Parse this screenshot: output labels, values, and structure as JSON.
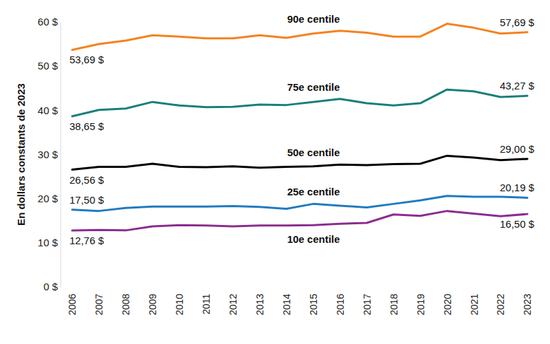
{
  "chart_data": {
    "type": "line",
    "y_label": "En dollars constants de 2023",
    "categories": [
      "2006",
      "2007",
      "2008",
      "2009",
      "2010",
      "2011",
      "2012",
      "2013",
      "2014",
      "2015",
      "2016",
      "2017",
      "2018",
      "2019",
      "2020",
      "2021",
      "2022",
      "2023"
    ],
    "ylim": [
      0,
      60
    ],
    "yticks": [
      {
        "value": 0,
        "label": "0 $"
      },
      {
        "value": 10,
        "label": "10 $"
      },
      {
        "value": 20,
        "label": "20 $"
      },
      {
        "value": 30,
        "label": "30 $"
      },
      {
        "value": 40,
        "label": "40 $"
      },
      {
        "value": 50,
        "label": "50 $"
      },
      {
        "value": 60,
        "label": "60 $"
      }
    ],
    "grid": false,
    "series": [
      {
        "name": "90e centile",
        "color": "#f5821f",
        "values": [
          53.69,
          55.0,
          55.8,
          57.0,
          56.7,
          56.3,
          56.3,
          57.0,
          56.4,
          57.4,
          58.0,
          57.6,
          56.7,
          56.7,
          59.6,
          58.7,
          57.4,
          57.69
        ],
        "value_labels": [
          "53,69 $",
          null,
          null,
          null,
          null,
          null,
          null,
          null,
          null,
          null,
          null,
          null,
          null,
          null,
          null,
          null,
          null,
          "57,69 $"
        ]
      },
      {
        "name": "75e centile",
        "color": "#1a7f7a",
        "values": [
          38.65,
          40.1,
          40.4,
          41.9,
          41.1,
          40.7,
          40.8,
          41.3,
          41.2,
          41.9,
          42.6,
          41.6,
          41.1,
          41.6,
          44.7,
          44.3,
          43.0,
          43.27
        ],
        "value_labels": [
          "38,65 $",
          null,
          null,
          null,
          null,
          null,
          null,
          null,
          null,
          null,
          null,
          null,
          null,
          null,
          null,
          null,
          null,
          "43,27 $"
        ]
      },
      {
        "name": "50e centile",
        "color": "#000000",
        "values": [
          26.56,
          27.2,
          27.2,
          27.9,
          27.2,
          27.1,
          27.3,
          27.0,
          27.2,
          27.3,
          27.7,
          27.6,
          27.8,
          27.9,
          29.7,
          29.3,
          28.7,
          29.0
        ],
        "value_labels": [
          "26,56 $",
          null,
          null,
          null,
          null,
          null,
          null,
          null,
          null,
          null,
          null,
          null,
          null,
          null,
          null,
          null,
          null,
          "29,00 $"
        ]
      },
      {
        "name": "25e centile",
        "color": "#1f7bbf",
        "values": [
          17.5,
          17.2,
          17.9,
          18.2,
          18.2,
          18.2,
          18.3,
          18.1,
          17.7,
          18.8,
          18.4,
          18.0,
          18.8,
          19.6,
          20.6,
          20.4,
          20.4,
          20.19
        ],
        "value_labels": [
          "17,50 $",
          null,
          null,
          null,
          null,
          null,
          null,
          null,
          null,
          null,
          null,
          null,
          null,
          null,
          null,
          null,
          null,
          "20,19 $"
        ]
      },
      {
        "name": "10e centile",
        "color": "#8b2c8f",
        "values": [
          12.76,
          12.9,
          12.8,
          13.7,
          14.0,
          13.9,
          13.7,
          13.9,
          13.9,
          14.0,
          14.3,
          14.5,
          16.4,
          16.1,
          17.2,
          16.6,
          16.0,
          16.5
        ],
        "value_labels": [
          "12,76 $",
          null,
          null,
          null,
          null,
          null,
          null,
          null,
          null,
          null,
          null,
          null,
          null,
          null,
          null,
          null,
          null,
          "16,50 $"
        ]
      }
    ]
  }
}
